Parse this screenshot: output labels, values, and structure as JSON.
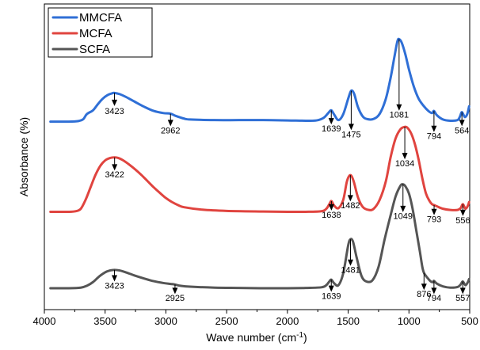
{
  "chart_data": {
    "type": "line",
    "xlabel": "Wave number (cm",
    "xlabel_sup": "-1",
    "xlabel_tail": ")",
    "ylabel": "Absorbance (%)",
    "xlim": [
      4000,
      500
    ],
    "x_reversed": true,
    "x_ticks": [
      4000,
      3500,
      3000,
      2500,
      2000,
      1500,
      1000,
      500
    ],
    "x_tick_labels": [
      "4000",
      "3500",
      "3000",
      "2500",
      "2000",
      "1500",
      "1000",
      "500"
    ],
    "y_ticks_shown": false,
    "legend_position": "top-left",
    "series": [
      {
        "name": "MMCFA",
        "color": "#2f6fd6",
        "x": [
          3950,
          3800,
          3720,
          3680,
          3650,
          3600,
          3560,
          3520,
          3480,
          3440,
          3423,
          3380,
          3330,
          3260,
          3180,
          3100,
          3020,
          2962,
          2920,
          2850,
          2800,
          2600,
          2400,
          2200,
          2000,
          1850,
          1760,
          1700,
          1660,
          1639,
          1615,
          1580,
          1540,
          1500,
          1475,
          1450,
          1420,
          1380,
          1340,
          1290,
          1240,
          1190,
          1150,
          1120,
          1095,
          1081,
          1060,
          1030,
          1000,
          960,
          920,
          880,
          840,
          810,
          794,
          770,
          720,
          660,
          600,
          580,
          564,
          540,
          520,
          505
        ],
        "y": [
          0.615,
          0.615,
          0.617,
          0.623,
          0.64,
          0.652,
          0.672,
          0.69,
          0.702,
          0.708,
          0.709,
          0.705,
          0.696,
          0.681,
          0.664,
          0.65,
          0.643,
          0.641,
          0.634,
          0.625,
          0.622,
          0.62,
          0.62,
          0.62,
          0.619,
          0.618,
          0.619,
          0.628,
          0.645,
          0.652,
          0.638,
          0.62,
          0.64,
          0.69,
          0.716,
          0.705,
          0.663,
          0.632,
          0.623,
          0.624,
          0.641,
          0.69,
          0.76,
          0.826,
          0.878,
          0.885,
          0.874,
          0.836,
          0.786,
          0.73,
          0.69,
          0.667,
          0.65,
          0.643,
          0.65,
          0.636,
          0.622,
          0.618,
          0.62,
          0.632,
          0.646,
          0.63,
          0.64,
          0.665
        ]
      },
      {
        "name": "MCFA",
        "color": "#e0443f",
        "x": [
          3950,
          3800,
          3740,
          3700,
          3660,
          3620,
          3580,
          3540,
          3500,
          3460,
          3422,
          3390,
          3350,
          3300,
          3250,
          3200,
          3150,
          3100,
          3050,
          3000,
          2950,
          2900,
          2850,
          2700,
          2500,
          2200,
          2000,
          1850,
          1720,
          1680,
          1655,
          1638,
          1615,
          1580,
          1540,
          1510,
          1482,
          1455,
          1420,
          1380,
          1330,
          1290,
          1240,
          1190,
          1150,
          1110,
          1070,
          1034,
          1010,
          980,
          950,
          920,
          890,
          860,
          830,
          810,
          793,
          770,
          720,
          660,
          600,
          575,
          556,
          535,
          515,
          505
        ],
        "y": [
          0.32,
          0.32,
          0.322,
          0.33,
          0.36,
          0.4,
          0.44,
          0.47,
          0.488,
          0.496,
          0.498,
          0.496,
          0.488,
          0.474,
          0.458,
          0.44,
          0.42,
          0.4,
          0.382,
          0.365,
          0.352,
          0.342,
          0.335,
          0.327,
          0.323,
          0.321,
          0.32,
          0.32,
          0.322,
          0.33,
          0.345,
          0.355,
          0.34,
          0.332,
          0.36,
          0.42,
          0.44,
          0.42,
          0.368,
          0.336,
          0.326,
          0.33,
          0.36,
          0.42,
          0.5,
          0.56,
          0.59,
          0.598,
          0.594,
          0.575,
          0.54,
          0.49,
          0.43,
          0.38,
          0.355,
          0.345,
          0.342,
          0.338,
          0.33,
          0.326,
          0.326,
          0.332,
          0.345,
          0.33,
          0.34,
          0.352
        ]
      },
      {
        "name": "SCFA",
        "color": "#555555",
        "x": [
          3950,
          3800,
          3700,
          3650,
          3600,
          3550,
          3500,
          3460,
          3423,
          3380,
          3330,
          3260,
          3180,
          3100,
          3020,
          2960,
          2925,
          2880,
          2800,
          2600,
          2400,
          2200,
          2000,
          1850,
          1720,
          1680,
          1655,
          1639,
          1615,
          1580,
          1540,
          1500,
          1481,
          1460,
          1430,
          1390,
          1350,
          1300,
          1250,
          1200,
          1150,
          1110,
          1070,
          1049,
          1030,
          1000,
          970,
          940,
          910,
          890,
          876,
          850,
          820,
          800,
          794,
          770,
          720,
          660,
          600,
          575,
          557,
          535,
          515,
          505
        ],
        "y": [
          0.07,
          0.07,
          0.072,
          0.078,
          0.09,
          0.108,
          0.122,
          0.128,
          0.13,
          0.128,
          0.122,
          0.112,
          0.102,
          0.093,
          0.087,
          0.084,
          0.082,
          0.078,
          0.075,
          0.072,
          0.071,
          0.07,
          0.07,
          0.071,
          0.073,
          0.08,
          0.092,
          0.098,
          0.086,
          0.08,
          0.12,
          0.21,
          0.23,
          0.222,
          0.17,
          0.11,
          0.092,
          0.096,
          0.14,
          0.23,
          0.31,
          0.37,
          0.405,
          0.41,
          0.404,
          0.38,
          0.33,
          0.26,
          0.19,
          0.14,
          0.12,
          0.105,
          0.092,
          0.09,
          0.094,
          0.085,
          0.076,
          0.072,
          0.074,
          0.082,
          0.092,
          0.08,
          0.09,
          0.1
        ]
      }
    ],
    "annotations": [
      {
        "label": "3423",
        "series": 0,
        "x": 3423,
        "y_top": 0.709,
        "y_arrow": 0.666,
        "y_text": 0.64
      },
      {
        "label": "2962",
        "series": 0,
        "x": 2962,
        "y_top": 0.641,
        "y_arrow": 0.6,
        "y_text": 0.577
      },
      {
        "label": "1639",
        "series": 0,
        "x": 1639,
        "y_top": 0.652,
        "y_arrow": 0.606,
        "y_text": 0.583
      },
      {
        "label": "1475",
        "series": 0,
        "x": 1475,
        "y_top": 0.716,
        "y_arrow": 0.587,
        "y_text": 0.564
      },
      {
        "label": "1081",
        "series": 0,
        "x": 1081,
        "y_top": 0.885,
        "y_arrow": 0.651,
        "y_text": 0.628
      },
      {
        "label": "794",
        "series": 0,
        "x": 794,
        "y_top": 0.65,
        "y_arrow": 0.581,
        "y_text": 0.558
      },
      {
        "label": "564",
        "series": 0,
        "x": 564,
        "y_top": 0.646,
        "y_arrow": 0.6,
        "y_text": 0.577
      },
      {
        "label": "3422",
        "series": 1,
        "x": 3422,
        "y_top": 0.498,
        "y_arrow": 0.455,
        "y_text": 0.432
      },
      {
        "label": "1638",
        "series": 1,
        "x": 1638,
        "y_top": 0.355,
        "y_arrow": 0.324,
        "y_text": 0.301
      },
      {
        "label": "1482",
        "series": 1,
        "x": 1482,
        "y_top": 0.44,
        "y_arrow": 0.354,
        "y_text": 0.331
      },
      {
        "label": "1034",
        "series": 1,
        "x": 1034,
        "y_top": 0.598,
        "y_arrow": 0.492,
        "y_text": 0.469
      },
      {
        "label": "793",
        "series": 1,
        "x": 793,
        "y_top": 0.342,
        "y_arrow": 0.309,
        "y_text": 0.286
      },
      {
        "label": "556",
        "series": 1,
        "x": 556,
        "y_top": 0.345,
        "y_arrow": 0.306,
        "y_text": 0.283
      },
      {
        "label": "3423",
        "series": 2,
        "x": 3423,
        "y_top": 0.13,
        "y_arrow": 0.092,
        "y_text": 0.069
      },
      {
        "label": "2925",
        "series": 2,
        "x": 2925,
        "y_top": 0.082,
        "y_arrow": 0.051,
        "y_text": 0.028
      },
      {
        "label": "1639",
        "series": 2,
        "x": 1639,
        "y_top": 0.098,
        "y_arrow": 0.058,
        "y_text": 0.035
      },
      {
        "label": "1481",
        "series": 2,
        "x": 1481,
        "y_top": 0.23,
        "y_arrow": 0.143,
        "y_text": 0.12
      },
      {
        "label": "1049",
        "series": 2,
        "x": 1049,
        "y_top": 0.41,
        "y_arrow": 0.319,
        "y_text": 0.296
      },
      {
        "label": "876",
        "series": 2,
        "x": 876,
        "y_top": 0.12,
        "y_arrow": 0.064,
        "y_text": 0.041
      },
      {
        "label": "794",
        "series": 2,
        "x": 794,
        "y_top": 0.094,
        "y_arrow": 0.051,
        "y_text": 0.028
      },
      {
        "label": "557",
        "series": 2,
        "x": 557,
        "y_top": 0.092,
        "y_arrow": 0.051,
        "y_text": 0.028
      }
    ]
  }
}
